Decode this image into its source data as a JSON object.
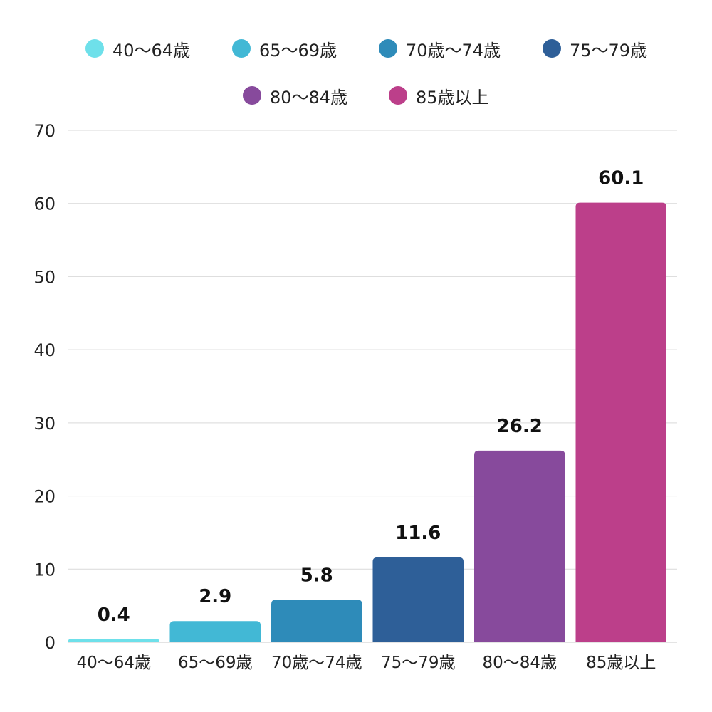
{
  "chart_data": {
    "type": "bar",
    "title": "",
    "xlabel": "",
    "ylabel": "",
    "categories": [
      "40〜64歳",
      "65〜69歳",
      "70歳〜74歳",
      "75〜79歳",
      "80〜84歳",
      "85歳以上"
    ],
    "values": [
      0.4,
      2.9,
      5.8,
      11.6,
      26.2,
      60.1
    ],
    "value_labels": [
      "0.4",
      "2.9",
      "5.8",
      "11.6",
      "26.2",
      "60.1"
    ],
    "colors": [
      "#6ee0ea",
      "#42b8d5",
      "#2e8bb9",
      "#2e5f98",
      "#874a9c",
      "#bc3f8a"
    ],
    "ylim": [
      0,
      70
    ],
    "yticks": [
      0,
      10,
      20,
      30,
      40,
      50,
      60,
      70
    ],
    "grid": true,
    "legend": {
      "placement": "top",
      "entries": [
        "40〜64歳",
        "65〜69歳",
        "70歳〜74歳",
        "75〜79歳",
        "80〜84歳",
        "85歳以上"
      ]
    }
  }
}
